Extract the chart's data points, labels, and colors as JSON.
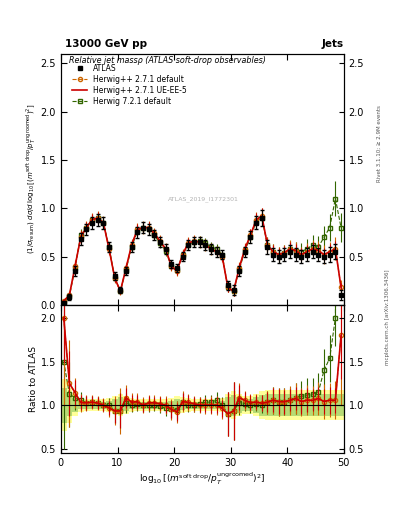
{
  "title_top": "13000 GeV pp",
  "title_right": "Jets",
  "plot_title": "Relative jet massρ (ATLAS soft-drop observables)",
  "ylabel_main": "(1/σ_resum) dσ/d log_{10}[(m^{soft drop}/p_T^{ungroomed})^2]",
  "ylabel_ratio": "Ratio to ATLAS",
  "xlabel": "log_{10}[(m^{soft drop}/p_T^{ungroomed})^2]",
  "right_label_top": "Rivet 3.1.10; ≥ 2.9M events",
  "right_label_bot": "mcplots.cern.ch [arXiv:1306.3436]",
  "watermark": "ATLAS_2019_I1772301",
  "xlim": [
    0,
    50
  ],
  "ylim_main": [
    0,
    2.6
  ],
  "ylim_ratio": [
    0.45,
    2.15
  ],
  "yticks_main": [
    0.0,
    0.5,
    1.0,
    1.5,
    2.0,
    2.5
  ],
  "yticks_ratio": [
    0.5,
    1.0,
    1.5,
    2.0
  ],
  "xticks": [
    0,
    10,
    20,
    30,
    40,
    50
  ],
  "x_data": [
    0.5,
    1.5,
    2.5,
    3.5,
    4.5,
    5.5,
    6.5,
    7.5,
    8.5,
    9.5,
    10.5,
    11.5,
    12.5,
    13.5,
    14.5,
    15.5,
    16.5,
    17.5,
    18.5,
    19.5,
    20.5,
    21.5,
    22.5,
    23.5,
    24.5,
    25.5,
    26.5,
    27.5,
    28.5,
    29.5,
    30.5,
    31.5,
    32.5,
    33.5,
    34.5,
    35.5,
    36.5,
    37.5,
    38.5,
    39.5,
    40.5,
    41.5,
    42.5,
    43.5,
    44.5,
    45.5,
    46.5,
    47.5,
    48.5,
    49.5
  ],
  "atlas_y": [
    0.02,
    0.08,
    0.35,
    0.68,
    0.78,
    0.85,
    0.88,
    0.85,
    0.6,
    0.3,
    0.15,
    0.35,
    0.6,
    0.75,
    0.8,
    0.78,
    0.72,
    0.65,
    0.58,
    0.42,
    0.38,
    0.5,
    0.62,
    0.65,
    0.65,
    0.62,
    0.58,
    0.55,
    0.52,
    0.2,
    0.15,
    0.35,
    0.55,
    0.7,
    0.85,
    0.9,
    0.6,
    0.52,
    0.5,
    0.52,
    0.55,
    0.52,
    0.5,
    0.52,
    0.55,
    0.52,
    0.5,
    0.52,
    0.55,
    0.1
  ],
  "atlas_yerr": [
    0.01,
    0.03,
    0.05,
    0.06,
    0.06,
    0.06,
    0.06,
    0.06,
    0.05,
    0.04,
    0.03,
    0.04,
    0.05,
    0.06,
    0.06,
    0.06,
    0.05,
    0.05,
    0.05,
    0.04,
    0.04,
    0.05,
    0.05,
    0.05,
    0.05,
    0.05,
    0.05,
    0.05,
    0.05,
    0.05,
    0.05,
    0.05,
    0.05,
    0.06,
    0.07,
    0.08,
    0.07,
    0.07,
    0.07,
    0.07,
    0.07,
    0.07,
    0.07,
    0.07,
    0.07,
    0.07,
    0.07,
    0.08,
    0.08,
    0.05
  ],
  "hw271_default_y": [
    0.04,
    0.1,
    0.4,
    0.7,
    0.8,
    0.88,
    0.9,
    0.85,
    0.58,
    0.28,
    0.14,
    0.38,
    0.62,
    0.78,
    0.8,
    0.8,
    0.74,
    0.66,
    0.58,
    0.4,
    0.35,
    0.52,
    0.64,
    0.66,
    0.65,
    0.62,
    0.58,
    0.55,
    0.5,
    0.18,
    0.14,
    0.38,
    0.58,
    0.72,
    0.88,
    0.92,
    0.62,
    0.55,
    0.52,
    0.54,
    0.58,
    0.56,
    0.52,
    0.55,
    0.58,
    0.56,
    0.52,
    0.55,
    0.58,
    0.18
  ],
  "hw271_default_yerr": [
    0.02,
    0.04,
    0.06,
    0.07,
    0.07,
    0.07,
    0.07,
    0.07,
    0.06,
    0.05,
    0.04,
    0.05,
    0.06,
    0.07,
    0.07,
    0.07,
    0.06,
    0.06,
    0.06,
    0.05,
    0.05,
    0.06,
    0.06,
    0.06,
    0.06,
    0.06,
    0.06,
    0.06,
    0.06,
    0.05,
    0.05,
    0.06,
    0.06,
    0.07,
    0.08,
    0.08,
    0.08,
    0.08,
    0.08,
    0.08,
    0.09,
    0.09,
    0.08,
    0.09,
    0.09,
    0.1,
    0.1,
    0.1,
    0.12,
    0.08
  ],
  "hw271_ueee5_y": [
    0.04,
    0.1,
    0.4,
    0.7,
    0.8,
    0.88,
    0.9,
    0.85,
    0.58,
    0.28,
    0.14,
    0.38,
    0.62,
    0.78,
    0.8,
    0.8,
    0.74,
    0.66,
    0.58,
    0.4,
    0.35,
    0.52,
    0.64,
    0.66,
    0.65,
    0.62,
    0.58,
    0.55,
    0.5,
    0.18,
    0.14,
    0.38,
    0.58,
    0.72,
    0.88,
    0.92,
    0.62,
    0.55,
    0.52,
    0.54,
    0.58,
    0.56,
    0.52,
    0.55,
    0.58,
    0.56,
    0.52,
    0.55,
    0.58,
    0.18
  ],
  "hw271_ueee5_yerr": [
    0.01,
    0.03,
    0.05,
    0.06,
    0.06,
    0.06,
    0.06,
    0.06,
    0.05,
    0.04,
    0.03,
    0.04,
    0.05,
    0.06,
    0.06,
    0.06,
    0.05,
    0.05,
    0.05,
    0.04,
    0.04,
    0.05,
    0.05,
    0.05,
    0.05,
    0.05,
    0.05,
    0.05,
    0.05,
    0.05,
    0.05,
    0.05,
    0.05,
    0.06,
    0.07,
    0.08,
    0.07,
    0.07,
    0.07,
    0.07,
    0.07,
    0.07,
    0.07,
    0.07,
    0.07,
    0.07,
    0.07,
    0.08,
    0.08,
    0.05
  ],
  "hw721_default_y": [
    0.03,
    0.09,
    0.38,
    0.72,
    0.8,
    0.88,
    0.9,
    0.85,
    0.6,
    0.28,
    0.14,
    0.36,
    0.6,
    0.76,
    0.8,
    0.78,
    0.72,
    0.64,
    0.56,
    0.4,
    0.36,
    0.52,
    0.62,
    0.65,
    0.66,
    0.64,
    0.6,
    0.58,
    0.52,
    0.18,
    0.14,
    0.36,
    0.56,
    0.7,
    0.86,
    0.9,
    0.62,
    0.55,
    0.52,
    0.54,
    0.58,
    0.56,
    0.55,
    0.58,
    0.62,
    0.6,
    0.7,
    0.8,
    1.1,
    0.8
  ],
  "hw721_default_yerr": [
    0.02,
    0.03,
    0.05,
    0.06,
    0.06,
    0.06,
    0.06,
    0.06,
    0.05,
    0.04,
    0.03,
    0.04,
    0.05,
    0.06,
    0.06,
    0.06,
    0.05,
    0.05,
    0.05,
    0.04,
    0.04,
    0.05,
    0.05,
    0.05,
    0.05,
    0.05,
    0.05,
    0.05,
    0.05,
    0.05,
    0.05,
    0.05,
    0.05,
    0.06,
    0.07,
    0.08,
    0.08,
    0.08,
    0.08,
    0.08,
    0.08,
    0.09,
    0.09,
    0.1,
    0.1,
    0.11,
    0.12,
    0.14,
    0.18,
    0.15
  ],
  "color_atlas": "#000000",
  "color_hw271_default": "#cc6600",
  "color_hw271_ueee5": "#cc0000",
  "color_hw721_default": "#336600",
  "band_yellow": "#ffff99",
  "band_green": "#99cc66",
  "atlas_band_lo": [
    0.7,
    0.8,
    0.87,
    0.92,
    0.93,
    0.93,
    0.93,
    0.93,
    0.92,
    0.9,
    0.87,
    0.9,
    0.92,
    0.93,
    0.93,
    0.93,
    0.93,
    0.93,
    0.93,
    0.92,
    0.9,
    0.91,
    0.92,
    0.93,
    0.93,
    0.93,
    0.93,
    0.93,
    0.92,
    0.87,
    0.84,
    0.87,
    0.9,
    0.9,
    0.87,
    0.84,
    0.83,
    0.83,
    0.83,
    0.83,
    0.83,
    0.83,
    0.83,
    0.83,
    0.83,
    0.83,
    0.83,
    0.83,
    0.83,
    0.83
  ],
  "atlas_band_hi": [
    1.3,
    1.2,
    1.13,
    1.08,
    1.07,
    1.07,
    1.07,
    1.07,
    1.08,
    1.1,
    1.13,
    1.1,
    1.08,
    1.07,
    1.07,
    1.07,
    1.07,
    1.07,
    1.07,
    1.08,
    1.1,
    1.09,
    1.08,
    1.07,
    1.07,
    1.07,
    1.07,
    1.07,
    1.08,
    1.13,
    1.16,
    1.13,
    1.1,
    1.1,
    1.13,
    1.16,
    1.17,
    1.17,
    1.17,
    1.17,
    1.17,
    1.17,
    1.17,
    1.17,
    1.17,
    1.17,
    1.17,
    1.17,
    1.17,
    1.17
  ],
  "atlas_band_stat_lo": [
    0.8,
    0.87,
    0.92,
    0.95,
    0.96,
    0.96,
    0.96,
    0.96,
    0.95,
    0.93,
    0.91,
    0.93,
    0.95,
    0.96,
    0.96,
    0.96,
    0.96,
    0.96,
    0.96,
    0.95,
    0.93,
    0.94,
    0.95,
    0.96,
    0.96,
    0.96,
    0.96,
    0.96,
    0.95,
    0.91,
    0.88,
    0.91,
    0.93,
    0.93,
    0.91,
    0.88,
    0.87,
    0.87,
    0.87,
    0.87,
    0.87,
    0.87,
    0.87,
    0.87,
    0.87,
    0.87,
    0.87,
    0.87,
    0.87,
    0.87
  ],
  "atlas_band_stat_hi": [
    1.2,
    1.13,
    1.08,
    1.05,
    1.04,
    1.04,
    1.04,
    1.04,
    1.05,
    1.07,
    1.09,
    1.07,
    1.05,
    1.04,
    1.04,
    1.04,
    1.04,
    1.04,
    1.04,
    1.05,
    1.07,
    1.06,
    1.05,
    1.04,
    1.04,
    1.04,
    1.04,
    1.04,
    1.05,
    1.09,
    1.12,
    1.09,
    1.07,
    1.07,
    1.09,
    1.12,
    1.13,
    1.13,
    1.13,
    1.13,
    1.13,
    1.13,
    1.13,
    1.13,
    1.13,
    1.13,
    1.13,
    1.13,
    1.13,
    1.13
  ]
}
